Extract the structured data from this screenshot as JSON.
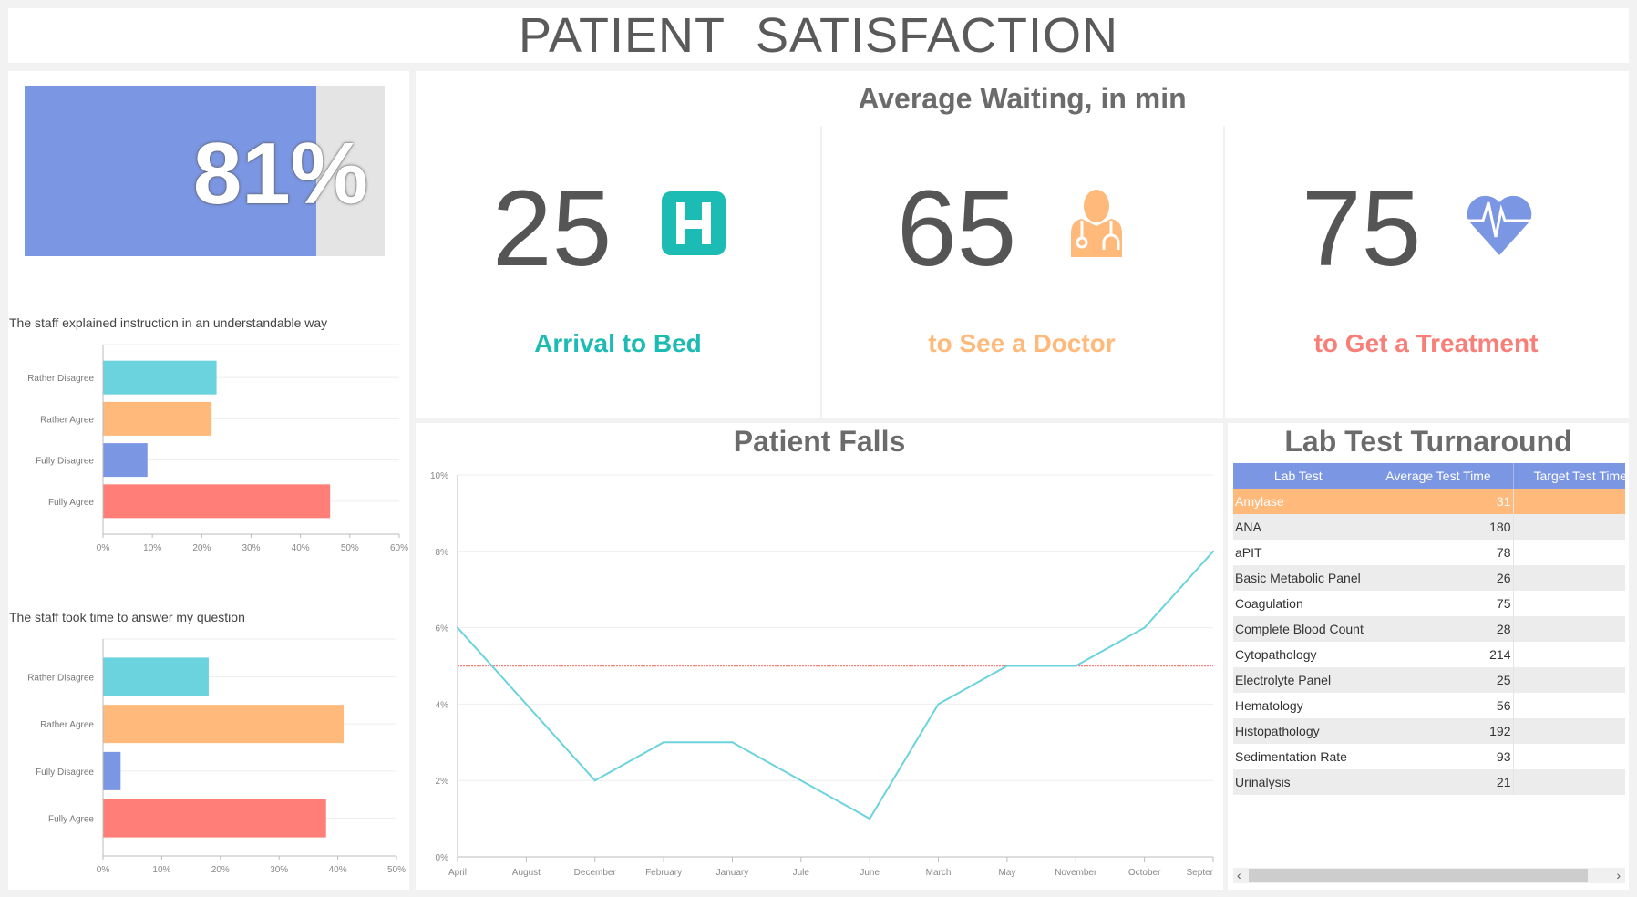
{
  "header": {
    "title": "PATIENT SATISFACTION"
  },
  "satisfaction": {
    "value_label": "81%",
    "percent": 81,
    "fill_color": "#7b96e2"
  },
  "survey_charts": [
    {
      "title": "The staff explained instruction in an understandable way",
      "type": "bar",
      "categories": [
        "Rather Disagree",
        "Rather Agree",
        "Fully Disagree",
        "Fully Agree"
      ],
      "values": [
        23,
        22,
        9,
        46
      ],
      "colors": [
        "#6bd3dd",
        "#ffb97a",
        "#7b96e2",
        "#ff7f78"
      ],
      "xlim": [
        0,
        60
      ],
      "ticks": [
        "0%",
        "10%",
        "20%",
        "30%",
        "40%",
        "50%",
        "60%"
      ]
    },
    {
      "title": "The staff took time to answer my question",
      "type": "bar",
      "categories": [
        "Rather Disagree",
        "Rather Agree",
        "Fully Disagree",
        "Fully Agree"
      ],
      "values": [
        18,
        41,
        3,
        38
      ],
      "colors": [
        "#6bd3dd",
        "#ffb97a",
        "#7b96e2",
        "#ff7f78"
      ],
      "xlim": [
        0,
        50
      ],
      "ticks": [
        "0%",
        "10%",
        "20%",
        "30%",
        "40%",
        "50%"
      ]
    }
  ],
  "waiting": {
    "title": "Average Waiting, in min",
    "items": [
      {
        "value": "25",
        "label": "Arrival to Bed",
        "color": "#1cbcb5",
        "icon": "hospital-icon"
      },
      {
        "value": "65",
        "label": "to See a Doctor",
        "color": "#ffb97a",
        "icon": "doctor-icon"
      },
      {
        "value": "75",
        "label": "to Get a Treatment",
        "color": "#f87f78",
        "icon": "heartbeat-icon"
      }
    ]
  },
  "chart_data": {
    "type": "line",
    "title": "Patient Falls",
    "categories": [
      "April",
      "August",
      "December",
      "February",
      "January",
      "Jule",
      "June",
      "March",
      "May",
      "November",
      "October",
      "Septer"
    ],
    "values": [
      6,
      4,
      2,
      3,
      3,
      2,
      1,
      4,
      5,
      5,
      6,
      8
    ],
    "target": 5,
    "ylim": [
      0,
      10
    ],
    "yticks": [
      "0%",
      "2%",
      "4%",
      "6%",
      "8%",
      "10%"
    ],
    "line_color": "#6bd3dd",
    "target_color": "#f87f78"
  },
  "lab": {
    "title": "Lab Test Turnaround",
    "columns": [
      "Lab Test",
      "Average Test Time",
      "Target Test Time"
    ],
    "rows": [
      [
        "Amylase",
        "31"
      ],
      [
        "ANA",
        "180"
      ],
      [
        "aPIT",
        "78"
      ],
      [
        "Basic Metabolic Panel",
        "26"
      ],
      [
        "Coagulation",
        "75"
      ],
      [
        "Complete Blood Count",
        "28"
      ],
      [
        "Cytopathology",
        "214"
      ],
      [
        "Electrolyte Panel",
        "25"
      ],
      [
        "Hematology",
        "56"
      ],
      [
        "Histopathology",
        "192"
      ],
      [
        "Sedimentation Rate",
        "93"
      ],
      [
        "Urinalysis",
        "21"
      ]
    ],
    "scroll_left": "‹",
    "scroll_right": "›"
  }
}
